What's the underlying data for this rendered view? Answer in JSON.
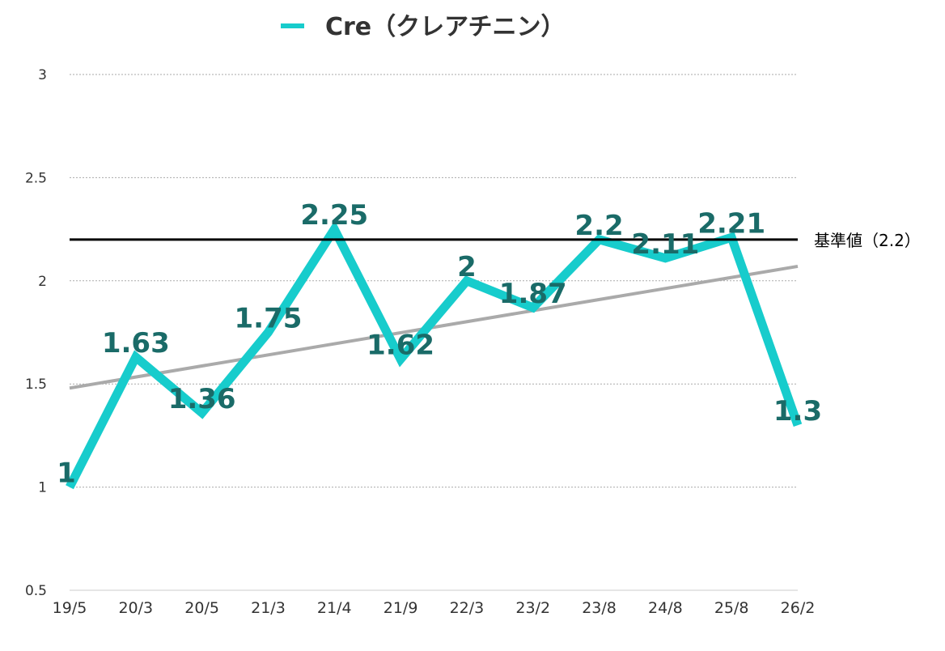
{
  "chart_data": {
    "type": "line",
    "categories": [
      "19/5",
      "20/3",
      "20/5",
      "21/3",
      "21/4",
      "21/9",
      "22/3",
      "23/2",
      "23/8",
      "24/8",
      "25/8",
      "26/2"
    ],
    "series": [
      {
        "name": "Cre（クレアチニン）",
        "values": [
          1,
          1.63,
          1.36,
          1.75,
          2.25,
          1.62,
          2,
          1.87,
          2.2,
          2.11,
          2.21,
          1.3
        ],
        "data_labels": [
          "1",
          "1.63",
          "1.36",
          "1.75",
          "2.25",
          "1.62",
          "2",
          "1.87",
          "2.2",
          "2.11",
          "2.21",
          "1.3"
        ],
        "color": "#17cccc"
      }
    ],
    "y_ticks": [
      "0.5",
      "1",
      "1.5",
      "2",
      "2.5",
      "3"
    ],
    "ylim": [
      0.5,
      3
    ],
    "reference_line": {
      "value": 2.2,
      "label": "基準値（2.2）",
      "color": "#000000"
    },
    "trendline": {
      "start": 1.48,
      "end": 2.07,
      "color": "#aaaaaa"
    },
    "grid": true,
    "legend_position": "top-center",
    "title": "",
    "xlabel": "",
    "ylabel": ""
  }
}
